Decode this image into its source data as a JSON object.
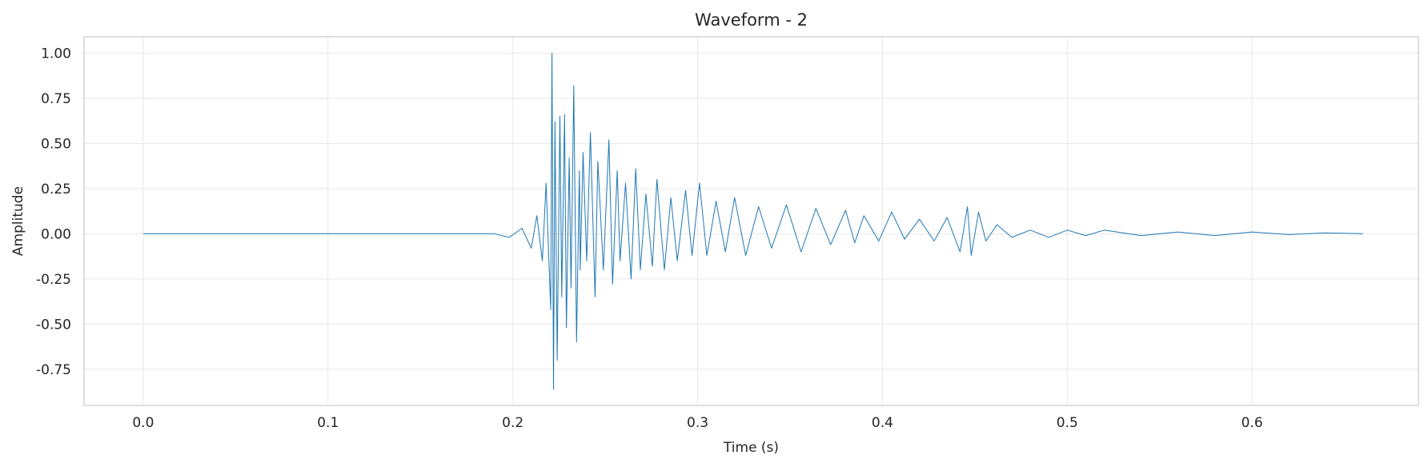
{
  "chart_data": {
    "type": "line",
    "title": "Waveform - 2",
    "xlabel": "Time (s)",
    "ylabel": "Amplitude",
    "xlim": [
      -0.032,
      0.69
    ],
    "ylim": [
      -0.95,
      1.09
    ],
    "xticks": [
      0.0,
      0.1,
      0.2,
      0.3,
      0.4,
      0.5,
      0.6
    ],
    "xtick_labels": [
      "0.0",
      "0.1",
      "0.2",
      "0.3",
      "0.4",
      "0.5",
      "0.6"
    ],
    "yticks": [
      1.0,
      0.75,
      0.5,
      0.25,
      0.0,
      -0.25,
      -0.5,
      -0.75
    ],
    "ytick_labels": [
      "1.00",
      "0.75",
      "0.50",
      "0.25",
      "0.00",
      "-0.25",
      "-0.50",
      "-0.75"
    ],
    "grid": true,
    "legend": "none",
    "series": [
      {
        "color": "#1f77b4",
        "x": [
          0.0,
          0.05,
          0.1,
          0.15,
          0.19,
          0.198,
          0.205,
          0.21,
          0.213,
          0.216,
          0.218,
          0.2205,
          0.2212,
          0.222,
          0.2228,
          0.224,
          0.2255,
          0.2265,
          0.228,
          0.229,
          0.2305,
          0.2315,
          0.233,
          0.2345,
          0.236,
          0.2365,
          0.238,
          0.24,
          0.242,
          0.2445,
          0.246,
          0.249,
          0.252,
          0.254,
          0.2565,
          0.258,
          0.261,
          0.264,
          0.2665,
          0.269,
          0.272,
          0.2755,
          0.278,
          0.282,
          0.2855,
          0.289,
          0.2935,
          0.297,
          0.301,
          0.305,
          0.31,
          0.315,
          0.32,
          0.326,
          0.333,
          0.34,
          0.348,
          0.356,
          0.364,
          0.372,
          0.38,
          0.385,
          0.39,
          0.398,
          0.405,
          0.412,
          0.42,
          0.428,
          0.435,
          0.442,
          0.446,
          0.448,
          0.452,
          0.456,
          0.462,
          0.47,
          0.48,
          0.49,
          0.5,
          0.51,
          0.52,
          0.54,
          0.56,
          0.58,
          0.6,
          0.62,
          0.64,
          0.66
        ],
        "y": [
          0.0,
          0.0,
          0.0,
          0.0,
          0.0,
          -0.02,
          0.03,
          -0.08,
          0.1,
          -0.15,
          0.28,
          -0.42,
          1.0,
          -0.86,
          0.62,
          -0.7,
          0.65,
          -0.35,
          0.66,
          -0.52,
          0.42,
          -0.3,
          0.82,
          -0.6,
          0.35,
          -0.2,
          0.45,
          -0.15,
          0.56,
          -0.35,
          0.4,
          -0.2,
          0.52,
          -0.28,
          0.35,
          -0.15,
          0.28,
          -0.25,
          0.36,
          -0.2,
          0.22,
          -0.18,
          0.3,
          -0.2,
          0.2,
          -0.15,
          0.24,
          -0.12,
          0.28,
          -0.12,
          0.18,
          -0.1,
          0.2,
          -0.12,
          0.15,
          -0.08,
          0.16,
          -0.1,
          0.14,
          -0.06,
          0.13,
          -0.05,
          0.1,
          -0.04,
          0.12,
          -0.03,
          0.08,
          -0.04,
          0.09,
          -0.1,
          0.15,
          -0.12,
          0.12,
          -0.04,
          0.05,
          -0.02,
          0.02,
          -0.02,
          0.02,
          -0.01,
          0.02,
          -0.01,
          0.01,
          -0.01,
          0.01,
          -0.005,
          0.005,
          0.0
        ]
      }
    ]
  }
}
